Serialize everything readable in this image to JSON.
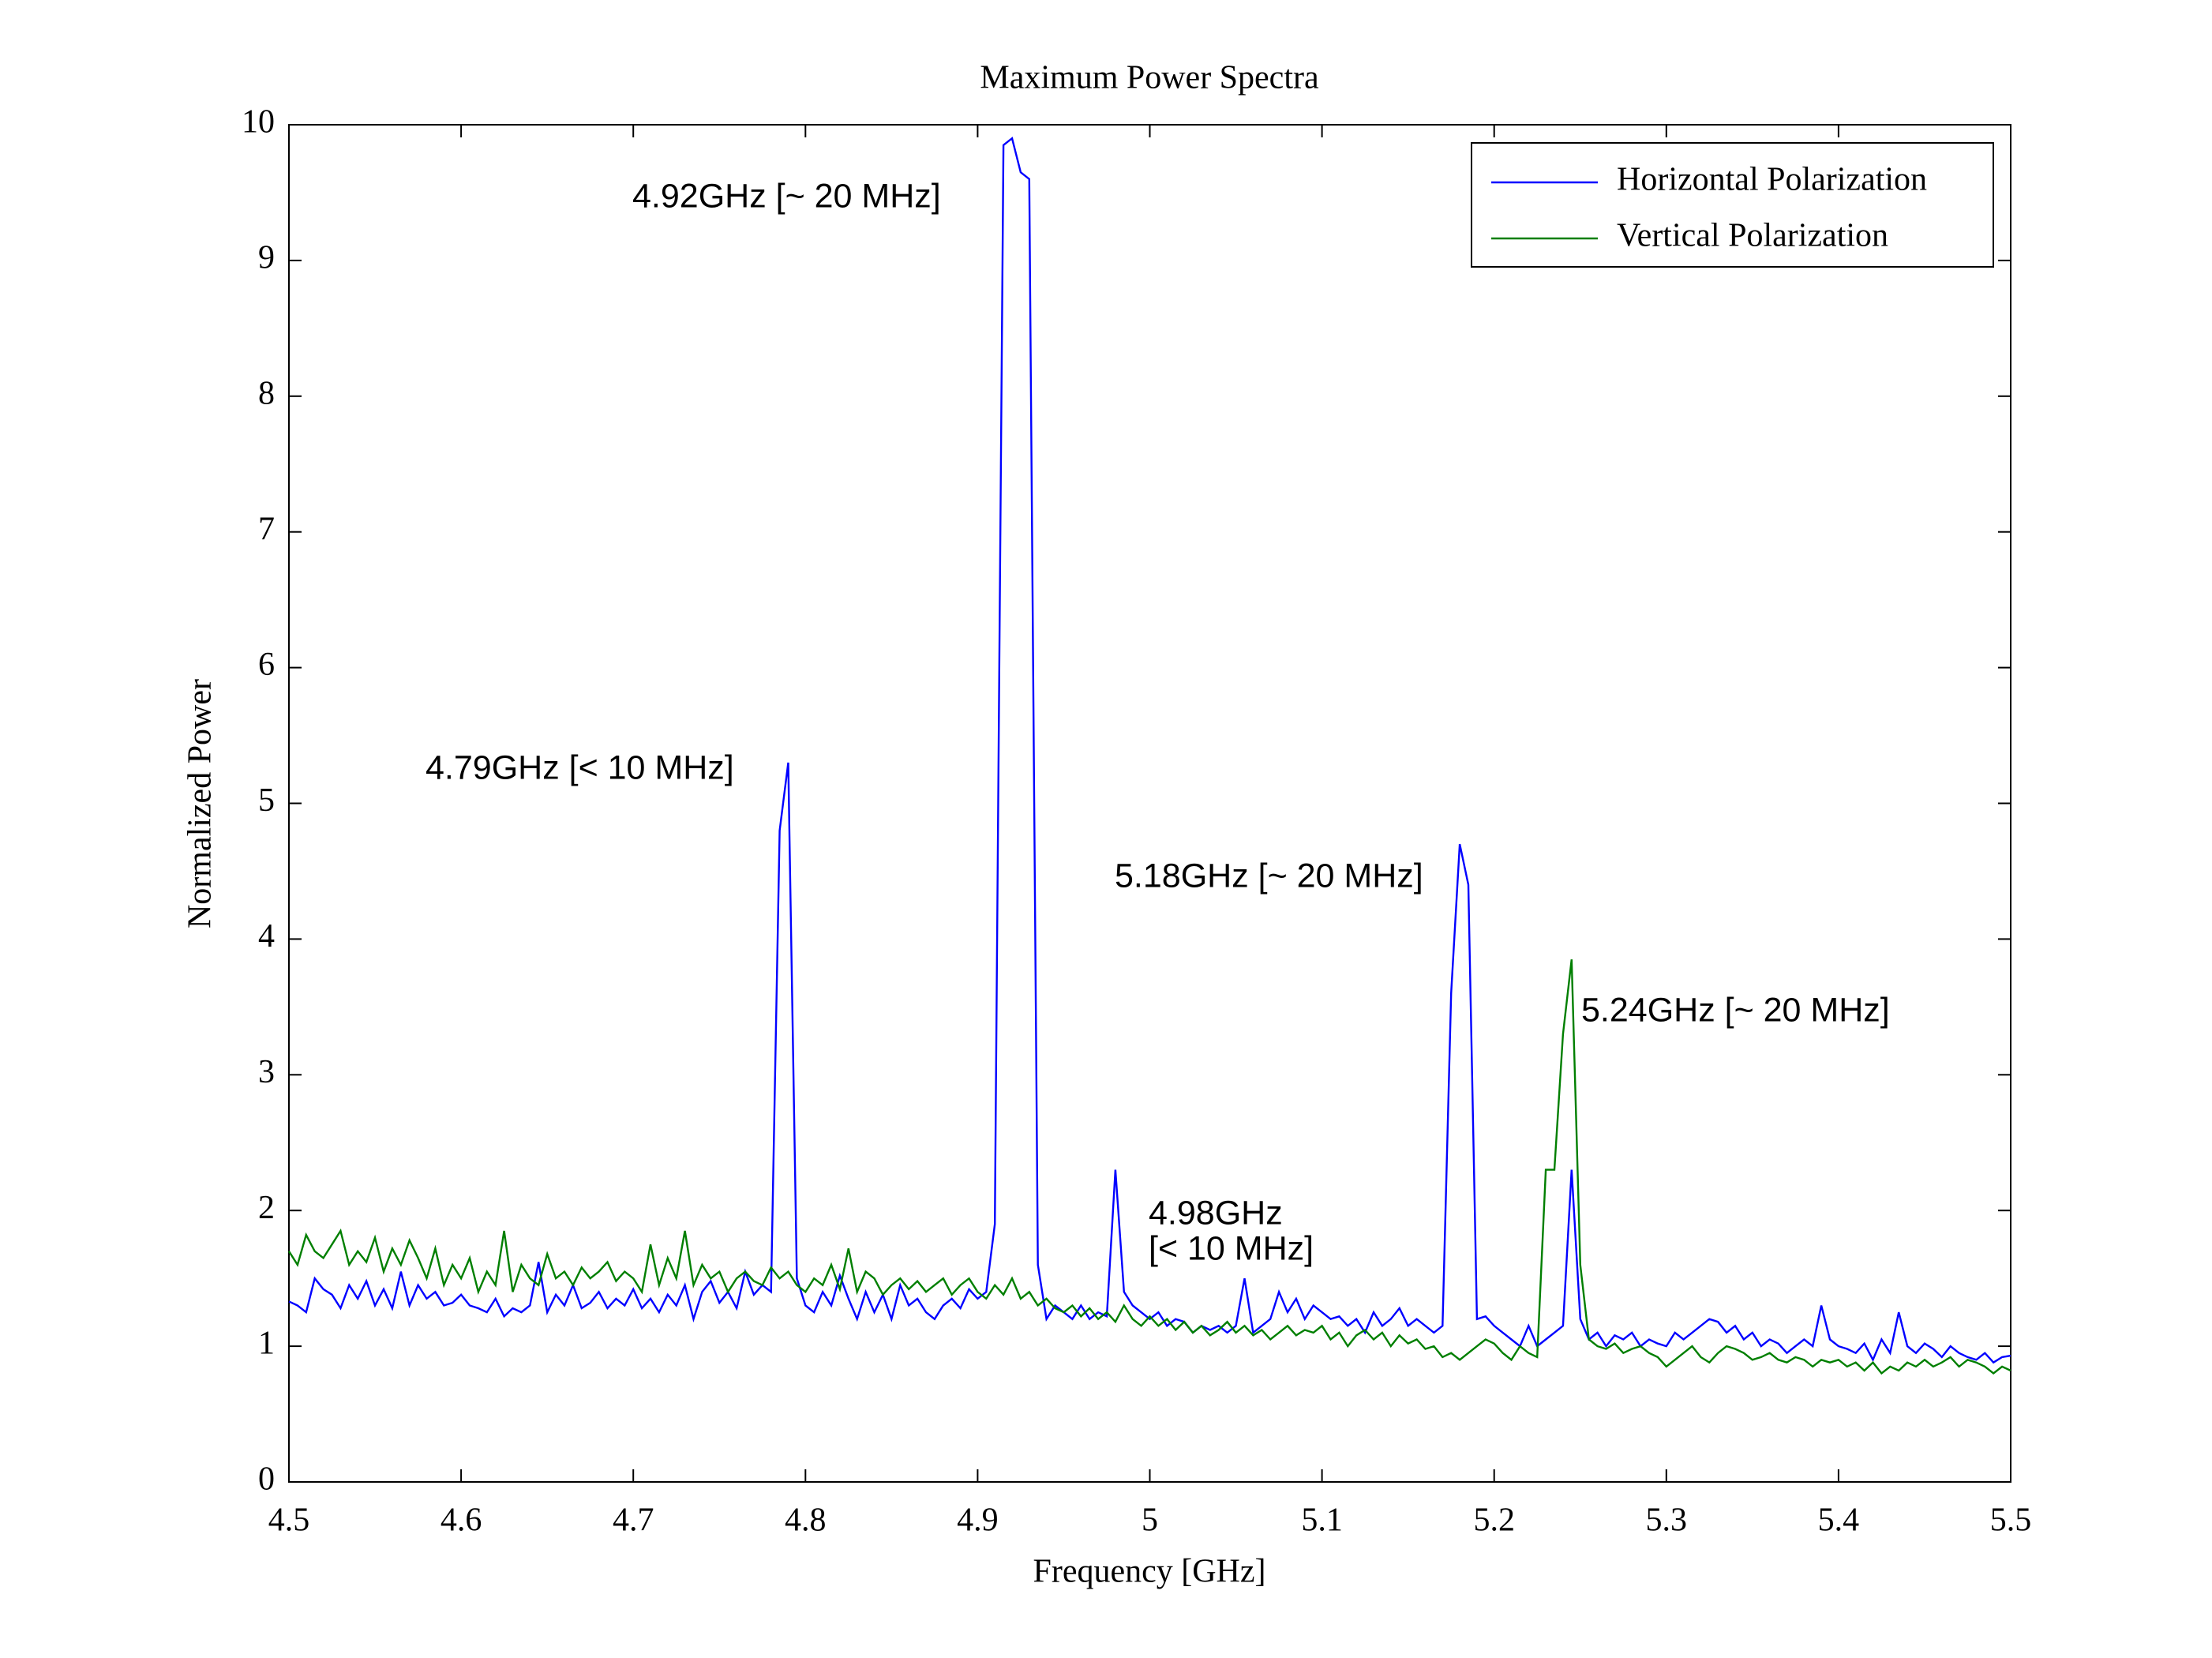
{
  "chart_data": {
    "type": "line",
    "title": "Maximum Power Spectra",
    "x_label": "Frequency [GHz]",
    "y_label": "Normalized Power",
    "xlim": [
      4.5,
      5.5
    ],
    "xticks": [
      4.5,
      4.6,
      4.7,
      4.8,
      4.9,
      5,
      5.1,
      5.2,
      5.3,
      5.4,
      5.5
    ],
    "ylim": [
      0,
      10
    ],
    "yticks": [
      0,
      1,
      2,
      3,
      4,
      5,
      6,
      7,
      8,
      9,
      10
    ],
    "grid": false,
    "legend": "upper right",
    "annotations": [
      "4.92GHz [~ 20 MHz]",
      "4.79GHz [< 10 MHz]",
      "5.18GHz [~ 20 MHz]",
      "5.24GHz [~ 20 MHz]",
      "4.98GHz",
      "[< 10 MHz]"
    ],
    "x": [
      4.5,
      4.505,
      4.51,
      4.515,
      4.52,
      4.525,
      4.53,
      4.535,
      4.54,
      4.545,
      4.55,
      4.555,
      4.56,
      4.565,
      4.57,
      4.575,
      4.58,
      4.585,
      4.59,
      4.595,
      4.6,
      4.605,
      4.61,
      4.615,
      4.62,
      4.625,
      4.63,
      4.635,
      4.64,
      4.645,
      4.65,
      4.655,
      4.66,
      4.665,
      4.67,
      4.675,
      4.68,
      4.685,
      4.69,
      4.695,
      4.7,
      4.705,
      4.71,
      4.715,
      4.72,
      4.725,
      4.73,
      4.735,
      4.74,
      4.745,
      4.75,
      4.755,
      4.76,
      4.765,
      4.77,
      4.775,
      4.78,
      4.785,
      4.79,
      4.795,
      4.8,
      4.805,
      4.81,
      4.815,
      4.82,
      4.825,
      4.83,
      4.835,
      4.84,
      4.845,
      4.85,
      4.855,
      4.86,
      4.865,
      4.87,
      4.875,
      4.88,
      4.885,
      4.89,
      4.895,
      4.9,
      4.905,
      4.91,
      4.915,
      4.92,
      4.925,
      4.93,
      4.935,
      4.94,
      4.945,
      4.95,
      4.955,
      4.96,
      4.965,
      4.97,
      4.975,
      4.98,
      4.985,
      4.99,
      4.995,
      5.0,
      5.005,
      5.01,
      5.015,
      5.02,
      5.025,
      5.03,
      5.035,
      5.04,
      5.045,
      5.05,
      5.055,
      5.06,
      5.065,
      5.07,
      5.075,
      5.08,
      5.085,
      5.09,
      5.095,
      5.1,
      5.105,
      5.11,
      5.115,
      5.12,
      5.125,
      5.13,
      5.135,
      5.14,
      5.145,
      5.15,
      5.155,
      5.16,
      5.165,
      5.17,
      5.175,
      5.18,
      5.185,
      5.19,
      5.195,
      5.2,
      5.205,
      5.21,
      5.215,
      5.22,
      5.225,
      5.23,
      5.235,
      5.24,
      5.245,
      5.25,
      5.255,
      5.26,
      5.265,
      5.27,
      5.275,
      5.28,
      5.285,
      5.29,
      5.295,
      5.3,
      5.305,
      5.31,
      5.315,
      5.32,
      5.325,
      5.33,
      5.335,
      5.34,
      5.345,
      5.35,
      5.355,
      5.36,
      5.365,
      5.37,
      5.375,
      5.38,
      5.385,
      5.39,
      5.395,
      5.4,
      5.405,
      5.41,
      5.415,
      5.42,
      5.425,
      5.43,
      5.435,
      5.44,
      5.445,
      5.45,
      5.455,
      5.46,
      5.465,
      5.47,
      5.475,
      5.48,
      5.485,
      5.49,
      5.495,
      5.5
    ],
    "series": [
      {
        "name": "Horizontal Polarization",
        "color": "#0000ff",
        "values": [
          1.33,
          1.3,
          1.25,
          1.5,
          1.42,
          1.38,
          1.28,
          1.45,
          1.35,
          1.48,
          1.3,
          1.42,
          1.28,
          1.55,
          1.3,
          1.45,
          1.35,
          1.4,
          1.3,
          1.32,
          1.38,
          1.3,
          1.28,
          1.25,
          1.35,
          1.22,
          1.28,
          1.25,
          1.3,
          1.62,
          1.25,
          1.38,
          1.3,
          1.45,
          1.28,
          1.32,
          1.4,
          1.28,
          1.35,
          1.3,
          1.42,
          1.28,
          1.35,
          1.25,
          1.38,
          1.3,
          1.45,
          1.2,
          1.4,
          1.48,
          1.32,
          1.4,
          1.28,
          1.55,
          1.38,
          1.45,
          1.4,
          4.8,
          5.3,
          1.5,
          1.3,
          1.25,
          1.4,
          1.3,
          1.52,
          1.35,
          1.2,
          1.4,
          1.25,
          1.38,
          1.2,
          1.45,
          1.3,
          1.35,
          1.25,
          1.2,
          1.3,
          1.35,
          1.28,
          1.42,
          1.35,
          1.4,
          1.9,
          9.85,
          9.9,
          9.65,
          9.6,
          1.6,
          1.2,
          1.3,
          1.25,
          1.2,
          1.3,
          1.2,
          1.25,
          1.22,
          2.3,
          1.4,
          1.3,
          1.25,
          1.2,
          1.25,
          1.15,
          1.2,
          1.18,
          1.1,
          1.15,
          1.12,
          1.15,
          1.1,
          1.15,
          1.5,
          1.1,
          1.15,
          1.2,
          1.4,
          1.25,
          1.35,
          1.2,
          1.3,
          1.25,
          1.2,
          1.22,
          1.15,
          1.2,
          1.1,
          1.25,
          1.15,
          1.2,
          1.28,
          1.15,
          1.2,
          1.15,
          1.1,
          1.15,
          3.6,
          4.7,
          4.4,
          1.2,
          1.22,
          1.15,
          1.1,
          1.05,
          1.0,
          1.15,
          1.0,
          1.05,
          1.1,
          1.15,
          2.3,
          1.2,
          1.05,
          1.1,
          1.0,
          1.08,
          1.05,
          1.1,
          1.0,
          1.05,
          1.02,
          1.0,
          1.1,
          1.05,
          1.1,
          1.15,
          1.2,
          1.18,
          1.1,
          1.15,
          1.05,
          1.1,
          1.0,
          1.05,
          1.02,
          0.95,
          1.0,
          1.05,
          1.0,
          1.3,
          1.05,
          1.0,
          0.98,
          0.95,
          1.02,
          0.9,
          1.05,
          0.95,
          1.25,
          1.0,
          0.95,
          1.02,
          0.98,
          0.92,
          1.0,
          0.95,
          0.92,
          0.9,
          0.95,
          0.88,
          0.92,
          0.93
        ]
      },
      {
        "name": "Vertical Polarization",
        "color": "#007f00",
        "values": [
          1.7,
          1.6,
          1.82,
          1.7,
          1.65,
          1.75,
          1.85,
          1.6,
          1.7,
          1.62,
          1.8,
          1.55,
          1.72,
          1.6,
          1.78,
          1.65,
          1.5,
          1.72,
          1.45,
          1.6,
          1.5,
          1.65,
          1.4,
          1.55,
          1.45,
          1.85,
          1.4,
          1.6,
          1.5,
          1.45,
          1.68,
          1.5,
          1.55,
          1.45,
          1.58,
          1.5,
          1.55,
          1.62,
          1.48,
          1.55,
          1.5,
          1.4,
          1.75,
          1.45,
          1.65,
          1.5,
          1.85,
          1.45,
          1.6,
          1.5,
          1.55,
          1.4,
          1.5,
          1.55,
          1.48,
          1.45,
          1.58,
          1.5,
          1.55,
          1.45,
          1.4,
          1.5,
          1.45,
          1.6,
          1.42,
          1.72,
          1.4,
          1.55,
          1.5,
          1.38,
          1.45,
          1.5,
          1.42,
          1.48,
          1.4,
          1.45,
          1.5,
          1.38,
          1.45,
          1.5,
          1.4,
          1.35,
          1.45,
          1.38,
          1.5,
          1.35,
          1.4,
          1.3,
          1.35,
          1.28,
          1.25,
          1.3,
          1.22,
          1.28,
          1.2,
          1.25,
          1.18,
          1.3,
          1.2,
          1.15,
          1.22,
          1.15,
          1.2,
          1.12,
          1.18,
          1.1,
          1.15,
          1.08,
          1.12,
          1.18,
          1.1,
          1.15,
          1.08,
          1.12,
          1.05,
          1.1,
          1.15,
          1.08,
          1.12,
          1.1,
          1.15,
          1.05,
          1.1,
          1.0,
          1.08,
          1.12,
          1.05,
          1.1,
          1.0,
          1.08,
          1.02,
          1.05,
          0.98,
          1.0,
          0.92,
          0.95,
          0.9,
          0.95,
          1.0,
          1.05,
          1.02,
          0.95,
          0.9,
          1.0,
          0.95,
          0.92,
          2.3,
          2.3,
          3.3,
          3.85,
          1.6,
          1.05,
          1.0,
          0.98,
          1.02,
          0.95,
          0.98,
          1.0,
          0.95,
          0.92,
          0.85,
          0.9,
          0.95,
          1.0,
          0.92,
          0.88,
          0.95,
          1.0,
          0.98,
          0.95,
          0.9,
          0.92,
          0.95,
          0.9,
          0.88,
          0.92,
          0.9,
          0.85,
          0.9,
          0.88,
          0.9,
          0.85,
          0.88,
          0.82,
          0.88,
          0.8,
          0.85,
          0.82,
          0.88,
          0.85,
          0.9,
          0.85,
          0.88,
          0.92,
          0.85,
          0.9,
          0.88,
          0.85,
          0.8,
          0.85,
          0.82
        ]
      }
    ]
  }
}
